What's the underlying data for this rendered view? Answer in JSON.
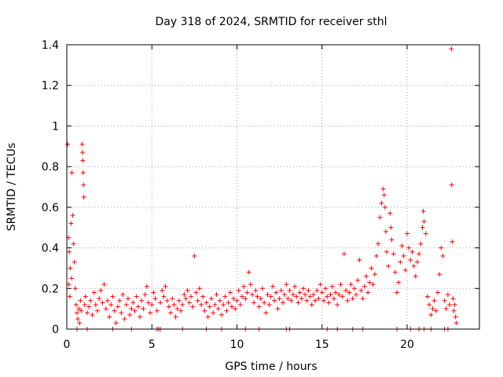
{
  "chart_data": {
    "type": "scatter",
    "title": "Day 318 of 2024, SRMTID for receiver sthl",
    "xlabel": "GPS time / hours",
    "ylabel": "SRMTID / TECUs",
    "xlim": [
      0,
      24.25
    ],
    "ylim": [
      0,
      1.4
    ],
    "xticks": [
      0,
      5,
      10,
      15,
      20
    ],
    "xtick_labels": [
      "0",
      "5",
      "10",
      "15",
      "20"
    ],
    "yticks": [
      0,
      0.2,
      0.4,
      0.6,
      0.8,
      1.0,
      1.2,
      1.4
    ],
    "ytick_labels": [
      "0",
      "0.2",
      "0.4",
      "0.6",
      "0.8",
      "1",
      "1.2",
      "1.4"
    ],
    "grid": true,
    "marker": "+",
    "marker_color": "#ff0000",
    "series": [
      {
        "name": "SRMTID",
        "points": [
          [
            0.05,
            0.91
          ],
          [
            0.1,
            0.45
          ],
          [
            0.15,
            0.38
          ],
          [
            0.2,
            0.3
          ],
          [
            0.25,
            0.52
          ],
          [
            0.3,
            0.77
          ],
          [
            0.35,
            0.56
          ],
          [
            0.4,
            0.42
          ],
          [
            0.12,
            0.22
          ],
          [
            0.18,
            0.16
          ],
          [
            0.28,
            0.25
          ],
          [
            0.45,
            0.33
          ],
          [
            0.5,
            0.2
          ],
          [
            0.55,
            0.12
          ],
          [
            0.6,
            0.08
          ],
          [
            0.65,
            0.05
          ],
          [
            0.7,
            0.1
          ],
          [
            0.75,
            0.03
          ],
          [
            0.8,
            0.14
          ],
          [
            0.85,
            0.09
          ],
          [
            0.9,
            0.91
          ],
          [
            0.92,
            0.87
          ],
          [
            0.94,
            0.83
          ],
          [
            0.96,
            0.77
          ],
          [
            0.98,
            0.71
          ],
          [
            1.0,
            0.65
          ],
          [
            1.05,
            0.12
          ],
          [
            1.1,
            0.16
          ],
          [
            1.2,
            0.08
          ],
          [
            1.3,
            0.11
          ],
          [
            1.4,
            0.14
          ],
          [
            1.5,
            0.07
          ],
          [
            1.6,
            0.18
          ],
          [
            1.7,
            0.12
          ],
          [
            1.8,
            0.09
          ],
          [
            1.9,
            0.15
          ],
          [
            2.0,
            0.19
          ],
          [
            2.1,
            0.13
          ],
          [
            2.2,
            0.22
          ],
          [
            2.3,
            0.1
          ],
          [
            2.4,
            0.14
          ],
          [
            2.5,
            0.06
          ],
          [
            2.6,
            0.12
          ],
          [
            2.7,
            0.16
          ],
          [
            2.8,
            0.09
          ],
          [
            2.9,
            0.03
          ],
          [
            3.0,
            0.11
          ],
          [
            3.1,
            0.14
          ],
          [
            3.2,
            0.08
          ],
          [
            3.3,
            0.17
          ],
          [
            3.4,
            0.05
          ],
          [
            3.5,
            0.12
          ],
          [
            3.6,
            0.15
          ],
          [
            3.7,
            0.07
          ],
          [
            3.8,
            0.1
          ],
          [
            3.9,
            0.13
          ],
          [
            4.0,
            0.09
          ],
          [
            4.1,
            0.16
          ],
          [
            4.2,
            0.11
          ],
          [
            4.3,
            0.06
          ],
          [
            4.4,
            0.14
          ],
          [
            4.5,
            0.1
          ],
          [
            4.6,
            0.17
          ],
          [
            4.7,
            0.21
          ],
          [
            4.8,
            0.13
          ],
          [
            4.9,
            0.08
          ],
          [
            5.0,
            0.12
          ],
          [
            5.1,
            0.18
          ],
          [
            5.2,
            0.15
          ],
          [
            5.3,
            0.09
          ],
          [
            5.4,
            0.0
          ],
          [
            5.5,
            0.13
          ],
          [
            5.6,
            0.19
          ],
          [
            5.7,
            0.16
          ],
          [
            5.8,
            0.21
          ],
          [
            5.9,
            0.14
          ],
          [
            6.0,
            0.11
          ],
          [
            6.1,
            0.08
          ],
          [
            6.2,
            0.15
          ],
          [
            6.3,
            0.12
          ],
          [
            6.4,
            0.06
          ],
          [
            6.5,
            0.1
          ],
          [
            6.6,
            0.14
          ],
          [
            6.7,
            0.09
          ],
          [
            6.8,
            0.12
          ],
          [
            6.9,
            0.17
          ],
          [
            7.0,
            0.15
          ],
          [
            7.1,
            0.19
          ],
          [
            7.2,
            0.13
          ],
          [
            7.3,
            0.16
          ],
          [
            7.4,
            0.11
          ],
          [
            7.5,
            0.36
          ],
          [
            7.6,
            0.18
          ],
          [
            7.7,
            0.14
          ],
          [
            7.8,
            0.2
          ],
          [
            7.9,
            0.12
          ],
          [
            8.0,
            0.16
          ],
          [
            8.1,
            0.09
          ],
          [
            8.2,
            0.13
          ],
          [
            8.3,
            0.06
          ],
          [
            8.4,
            0.11
          ],
          [
            8.5,
            0.15
          ],
          [
            8.6,
            0.08
          ],
          [
            8.7,
            0.12
          ],
          [
            8.8,
            0.17
          ],
          [
            8.9,
            0.1
          ],
          [
            9.0,
            0.14
          ],
          [
            9.1,
            0.07
          ],
          [
            9.2,
            0.12
          ],
          [
            9.3,
            0.16
          ],
          [
            9.4,
            0.09
          ],
          [
            9.5,
            0.13
          ],
          [
            9.6,
            0.18
          ],
          [
            9.7,
            0.11
          ],
          [
            9.8,
            0.15
          ],
          [
            9.9,
            0.1
          ],
          [
            10.0,
            0.14
          ],
          [
            10.1,
            0.19
          ],
          [
            10.2,
            0.12
          ],
          [
            10.3,
            0.16
          ],
          [
            10.4,
            0.21
          ],
          [
            10.5,
            0.15
          ],
          [
            10.6,
            0.18
          ],
          [
            10.7,
            0.28
          ],
          [
            10.8,
            0.22
          ],
          [
            10.9,
            0.17
          ],
          [
            11.0,
            0.13
          ],
          [
            11.1,
            0.19
          ],
          [
            11.2,
            0.16
          ],
          [
            11.3,
            0.11
          ],
          [
            11.4,
            0.15
          ],
          [
            11.5,
            0.2
          ],
          [
            11.6,
            0.13
          ],
          [
            11.7,
            0.08
          ],
          [
            11.8,
            0.17
          ],
          [
            11.9,
            0.12
          ],
          [
            12.0,
            0.16
          ],
          [
            12.1,
            0.21
          ],
          [
            12.2,
            0.14
          ],
          [
            12.3,
            0.18
          ],
          [
            12.4,
            0.1
          ],
          [
            12.5,
            0.15
          ],
          [
            12.6,
            0.19
          ],
          [
            12.7,
            0.13
          ],
          [
            12.8,
            0.17
          ],
          [
            12.9,
            0.22
          ],
          [
            13.0,
            0.15
          ],
          [
            13.1,
            0.19
          ],
          [
            13.2,
            0.14
          ],
          [
            13.3,
            0.17
          ],
          [
            13.4,
            0.21
          ],
          [
            13.5,
            0.16
          ],
          [
            13.6,
            0.13
          ],
          [
            13.7,
            0.18
          ],
          [
            13.8,
            0.15
          ],
          [
            13.9,
            0.2
          ],
          [
            14.0,
            0.17
          ],
          [
            14.1,
            0.14
          ],
          [
            14.2,
            0.19
          ],
          [
            14.3,
            0.16
          ],
          [
            14.4,
            0.12
          ],
          [
            14.5,
            0.17
          ],
          [
            14.6,
            0.14
          ],
          [
            14.7,
            0.19
          ],
          [
            14.8,
            0.15
          ],
          [
            14.9,
            0.22
          ],
          [
            15.0,
            0.18
          ],
          [
            15.1,
            0.14
          ],
          [
            15.2,
            0.2
          ],
          [
            15.3,
            0.16
          ],
          [
            15.4,
            0.13
          ],
          [
            15.5,
            0.17
          ],
          [
            15.6,
            0.21
          ],
          [
            15.7,
            0.15
          ],
          [
            15.8,
            0.18
          ],
          [
            15.9,
            0.12
          ],
          [
            16.0,
            0.17
          ],
          [
            16.1,
            0.22
          ],
          [
            16.2,
            0.16
          ],
          [
            16.3,
            0.37
          ],
          [
            16.4,
            0.19
          ],
          [
            16.5,
            0.14
          ],
          [
            16.6,
            0.18
          ],
          [
            16.7,
            0.22
          ],
          [
            16.8,
            0.15
          ],
          [
            16.9,
            0.2
          ],
          [
            17.0,
            0.17
          ],
          [
            17.1,
            0.24
          ],
          [
            17.2,
            0.34
          ],
          [
            17.3,
            0.19
          ],
          [
            17.4,
            0.15
          ],
          [
            17.5,
            0.21
          ],
          [
            17.6,
            0.26
          ],
          [
            17.7,
            0.18
          ],
          [
            17.8,
            0.23
          ],
          [
            17.9,
            0.3
          ],
          [
            18.0,
            0.22
          ],
          [
            18.1,
            0.27
          ],
          [
            18.2,
            0.36
          ],
          [
            18.3,
            0.42
          ],
          [
            18.4,
            0.55
          ],
          [
            18.5,
            0.62
          ],
          [
            18.6,
            0.69
          ],
          [
            18.65,
            0.66
          ],
          [
            18.7,
            0.6
          ],
          [
            18.75,
            0.48
          ],
          [
            18.8,
            0.38
          ],
          [
            18.9,
            0.31
          ],
          [
            19.0,
            0.57
          ],
          [
            19.05,
            0.5
          ],
          [
            19.1,
            0.44
          ],
          [
            19.2,
            0.37
          ],
          [
            19.3,
            0.28
          ],
          [
            19.4,
            0.18
          ],
          [
            19.5,
            0.23
          ],
          [
            19.6,
            0.33
          ],
          [
            19.7,
            0.41
          ],
          [
            19.8,
            0.36
          ],
          [
            19.9,
            0.29
          ],
          [
            20.0,
            0.47
          ],
          [
            20.1,
            0.4
          ],
          [
            20.2,
            0.34
          ],
          [
            20.3,
            0.38
          ],
          [
            20.4,
            0.31
          ],
          [
            20.5,
            0.26
          ],
          [
            20.6,
            0.33
          ],
          [
            20.7,
            0.37
          ],
          [
            20.8,
            0.42
          ],
          [
            20.9,
            0.5
          ],
          [
            20.95,
            0.58
          ],
          [
            21.0,
            0.53
          ],
          [
            21.1,
            0.47
          ],
          [
            21.2,
            0.16
          ],
          [
            21.3,
            0.12
          ],
          [
            21.4,
            0.07
          ],
          [
            21.5,
            0.1
          ],
          [
            21.6,
            0.14
          ],
          [
            21.7,
            0.09
          ],
          [
            21.8,
            0.18
          ],
          [
            21.9,
            0.27
          ],
          [
            22.0,
            0.4
          ],
          [
            22.1,
            0.36
          ],
          [
            22.2,
            0.14
          ],
          [
            22.3,
            0.1
          ],
          [
            22.4,
            0.17
          ],
          [
            22.5,
            0.12
          ],
          [
            22.6,
            1.38
          ],
          [
            22.62,
            0.71
          ],
          [
            22.65,
            0.43
          ],
          [
            22.7,
            0.15
          ],
          [
            22.75,
            0.09
          ],
          [
            22.8,
            0.12
          ],
          [
            22.85,
            0.06
          ],
          [
            22.9,
            0.03
          ],
          [
            0.6,
            0.0
          ],
          [
            1.2,
            0.0
          ],
          [
            2.7,
            0.0
          ],
          [
            3.8,
            0.0
          ],
          [
            5.3,
            0.0
          ],
          [
            5.5,
            0.0
          ],
          [
            6.8,
            0.0
          ],
          [
            8.2,
            0.0
          ],
          [
            9.1,
            0.0
          ],
          [
            10.5,
            0.0
          ],
          [
            11.3,
            0.0
          ],
          [
            12.9,
            0.0
          ],
          [
            13.1,
            0.0
          ],
          [
            15.3,
            0.0
          ],
          [
            15.9,
            0.0
          ],
          [
            16.8,
            0.0
          ],
          [
            17.4,
            0.0
          ],
          [
            19.4,
            0.0
          ],
          [
            20.2,
            0.0
          ],
          [
            20.7,
            0.0
          ],
          [
            21.0,
            0.0
          ],
          [
            21.4,
            0.0
          ],
          [
            22.2,
            0.0
          ],
          [
            22.4,
            0.0
          ]
        ]
      }
    ]
  }
}
